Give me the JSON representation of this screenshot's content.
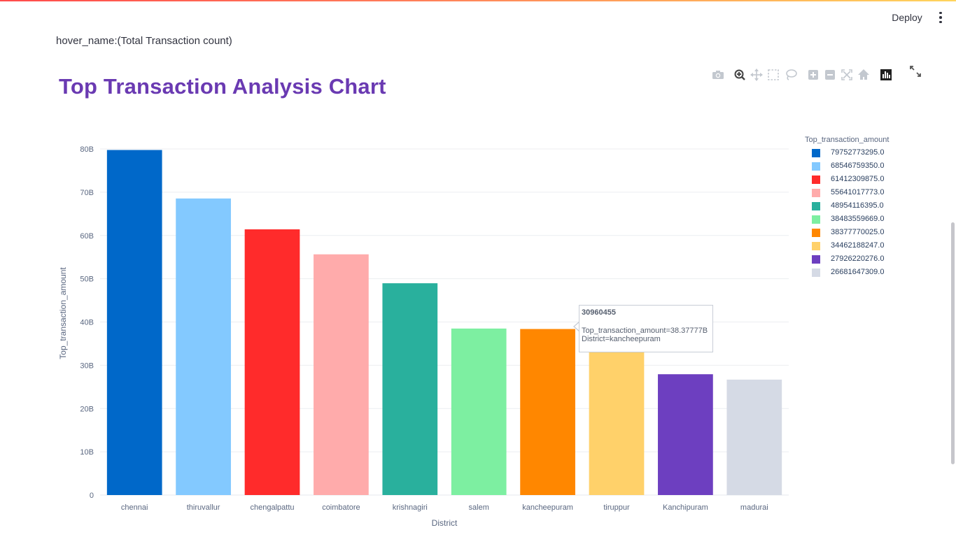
{
  "header": {
    "deploy_label": "Deploy",
    "menu_icon": "kebab-menu-icon"
  },
  "page": {
    "hover_note": "hover_name:(Total Transaction count)"
  },
  "modebar": [
    {
      "name": "download-png",
      "icon": "camera-icon"
    },
    {
      "name": "zoom",
      "icon": "zoom-icon"
    },
    {
      "name": "pan",
      "icon": "pan-icon"
    },
    {
      "name": "box-select",
      "icon": "box-select-icon"
    },
    {
      "name": "lasso-select",
      "icon": "lasso-icon"
    },
    {
      "name": "zoom-in",
      "icon": "zoom-in-icon"
    },
    {
      "name": "zoom-out",
      "icon": "zoom-out-icon"
    },
    {
      "name": "autoscale",
      "icon": "autoscale-icon"
    },
    {
      "name": "reset-axes",
      "icon": "home-icon"
    },
    {
      "name": "plotly-logo",
      "icon": "plotly-logo-icon"
    }
  ],
  "tooltip": {
    "header": "30960455",
    "line1": "Top_transaction_amount=38.37777B",
    "line2": "District=kancheepuram"
  },
  "chart_data": {
    "type": "bar",
    "title": "Top Transaction Analysis Chart",
    "xlabel": "District",
    "ylabel": "Top_transaction_amount",
    "categories": [
      "chennai",
      "thiruvallur",
      "chengalpattu",
      "coimbatore",
      "krishnagiri",
      "salem",
      "kancheepuram",
      "tiruppur",
      "Kanchipuram",
      "madurai"
    ],
    "values": [
      79752773295.0,
      68546759350.0,
      61412309875.0,
      55641017773.0,
      48954116395.0,
      38483559669.0,
      38377770025.0,
      34462188247.0,
      27926220276.0,
      26681647309.0
    ],
    "colors": [
      "#0068c9",
      "#83c9ff",
      "#ff2b2b",
      "#ffabab",
      "#29b09d",
      "#7defa1",
      "#ff8700",
      "#ffd16a",
      "#6d3fc0",
      "#d5dae5"
    ],
    "ylim": [
      0,
      80000000000
    ],
    "yticks": [
      0,
      10000000000,
      20000000000,
      30000000000,
      40000000000,
      50000000000,
      60000000000,
      70000000000,
      80000000000
    ],
    "ytick_labels": [
      "0",
      "10B",
      "20B",
      "30B",
      "40B",
      "50B",
      "60B",
      "70B",
      "80B"
    ],
    "grid": true,
    "legend_title": "Top_transaction_amount",
    "legend_labels": [
      "79752773295.0",
      "68546759350.0",
      "61412309875.0",
      "55641017773.0",
      "48954116395.0",
      "38483559669.0",
      "38377770025.0",
      "34462188247.0",
      "27926220276.0",
      "26681647309.0"
    ],
    "legend_position": "right"
  }
}
